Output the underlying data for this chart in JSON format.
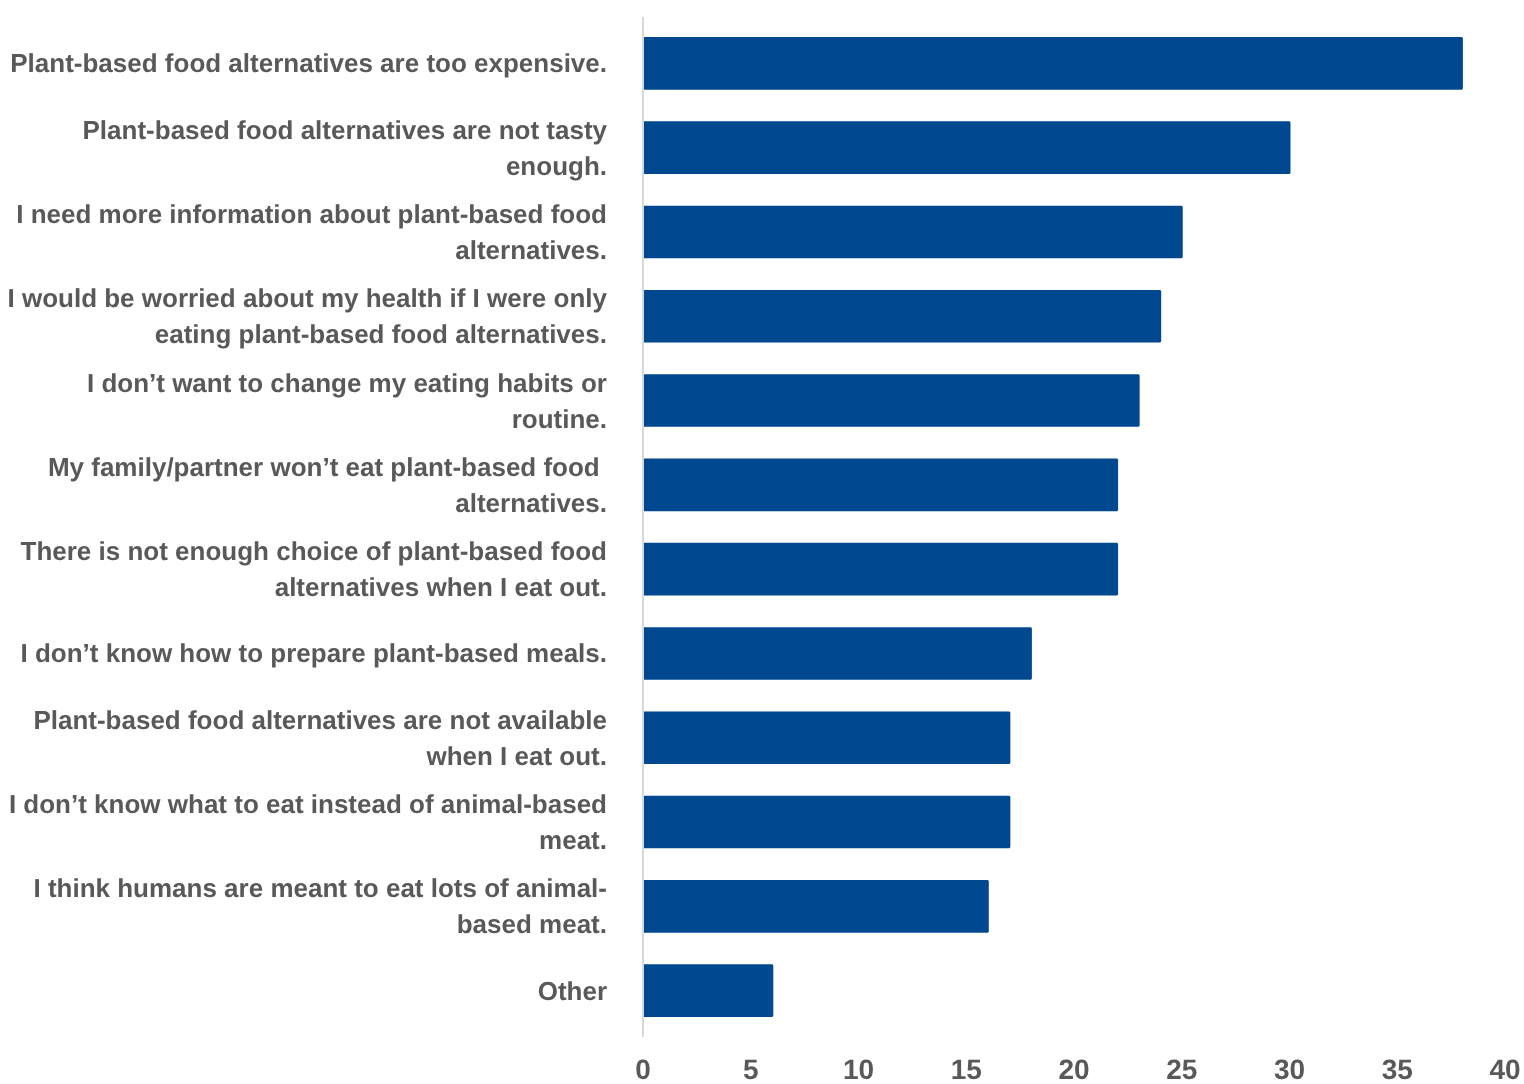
{
  "chart_data": {
    "type": "bar",
    "orientation": "horizontal",
    "categories": [
      "Plant-based food alternatives are too expensive.",
      "Plant-based food alternatives are not tasty enough.",
      "I need more information about plant-based food alternatives.",
      "I would be worried about my health if I were only eating plant-based food alternatives.",
      "I don’t want to change my eating habits or routine.",
      "My family/partner  won’t eat plant-based food alternatives.",
      "There is not enough choice of plant-based food alternatives when I eat out.",
      "I don’t know how to prepare plant-based meals.",
      "Plant-based food alternatives are not available when I eat out.",
      "I don’t know what to eat instead of animal-based meat.",
      "I think humans are meant to eat lots of animal-based meat.",
      "Other"
    ],
    "values": [
      38,
      30,
      25,
      24,
      23,
      22,
      22,
      18,
      17,
      17,
      16,
      6
    ],
    "color": "#004990",
    "xlim": [
      0,
      40
    ],
    "xticks": [
      0,
      5,
      10,
      15,
      20,
      25,
      30,
      35,
      40
    ],
    "grid": false
  }
}
